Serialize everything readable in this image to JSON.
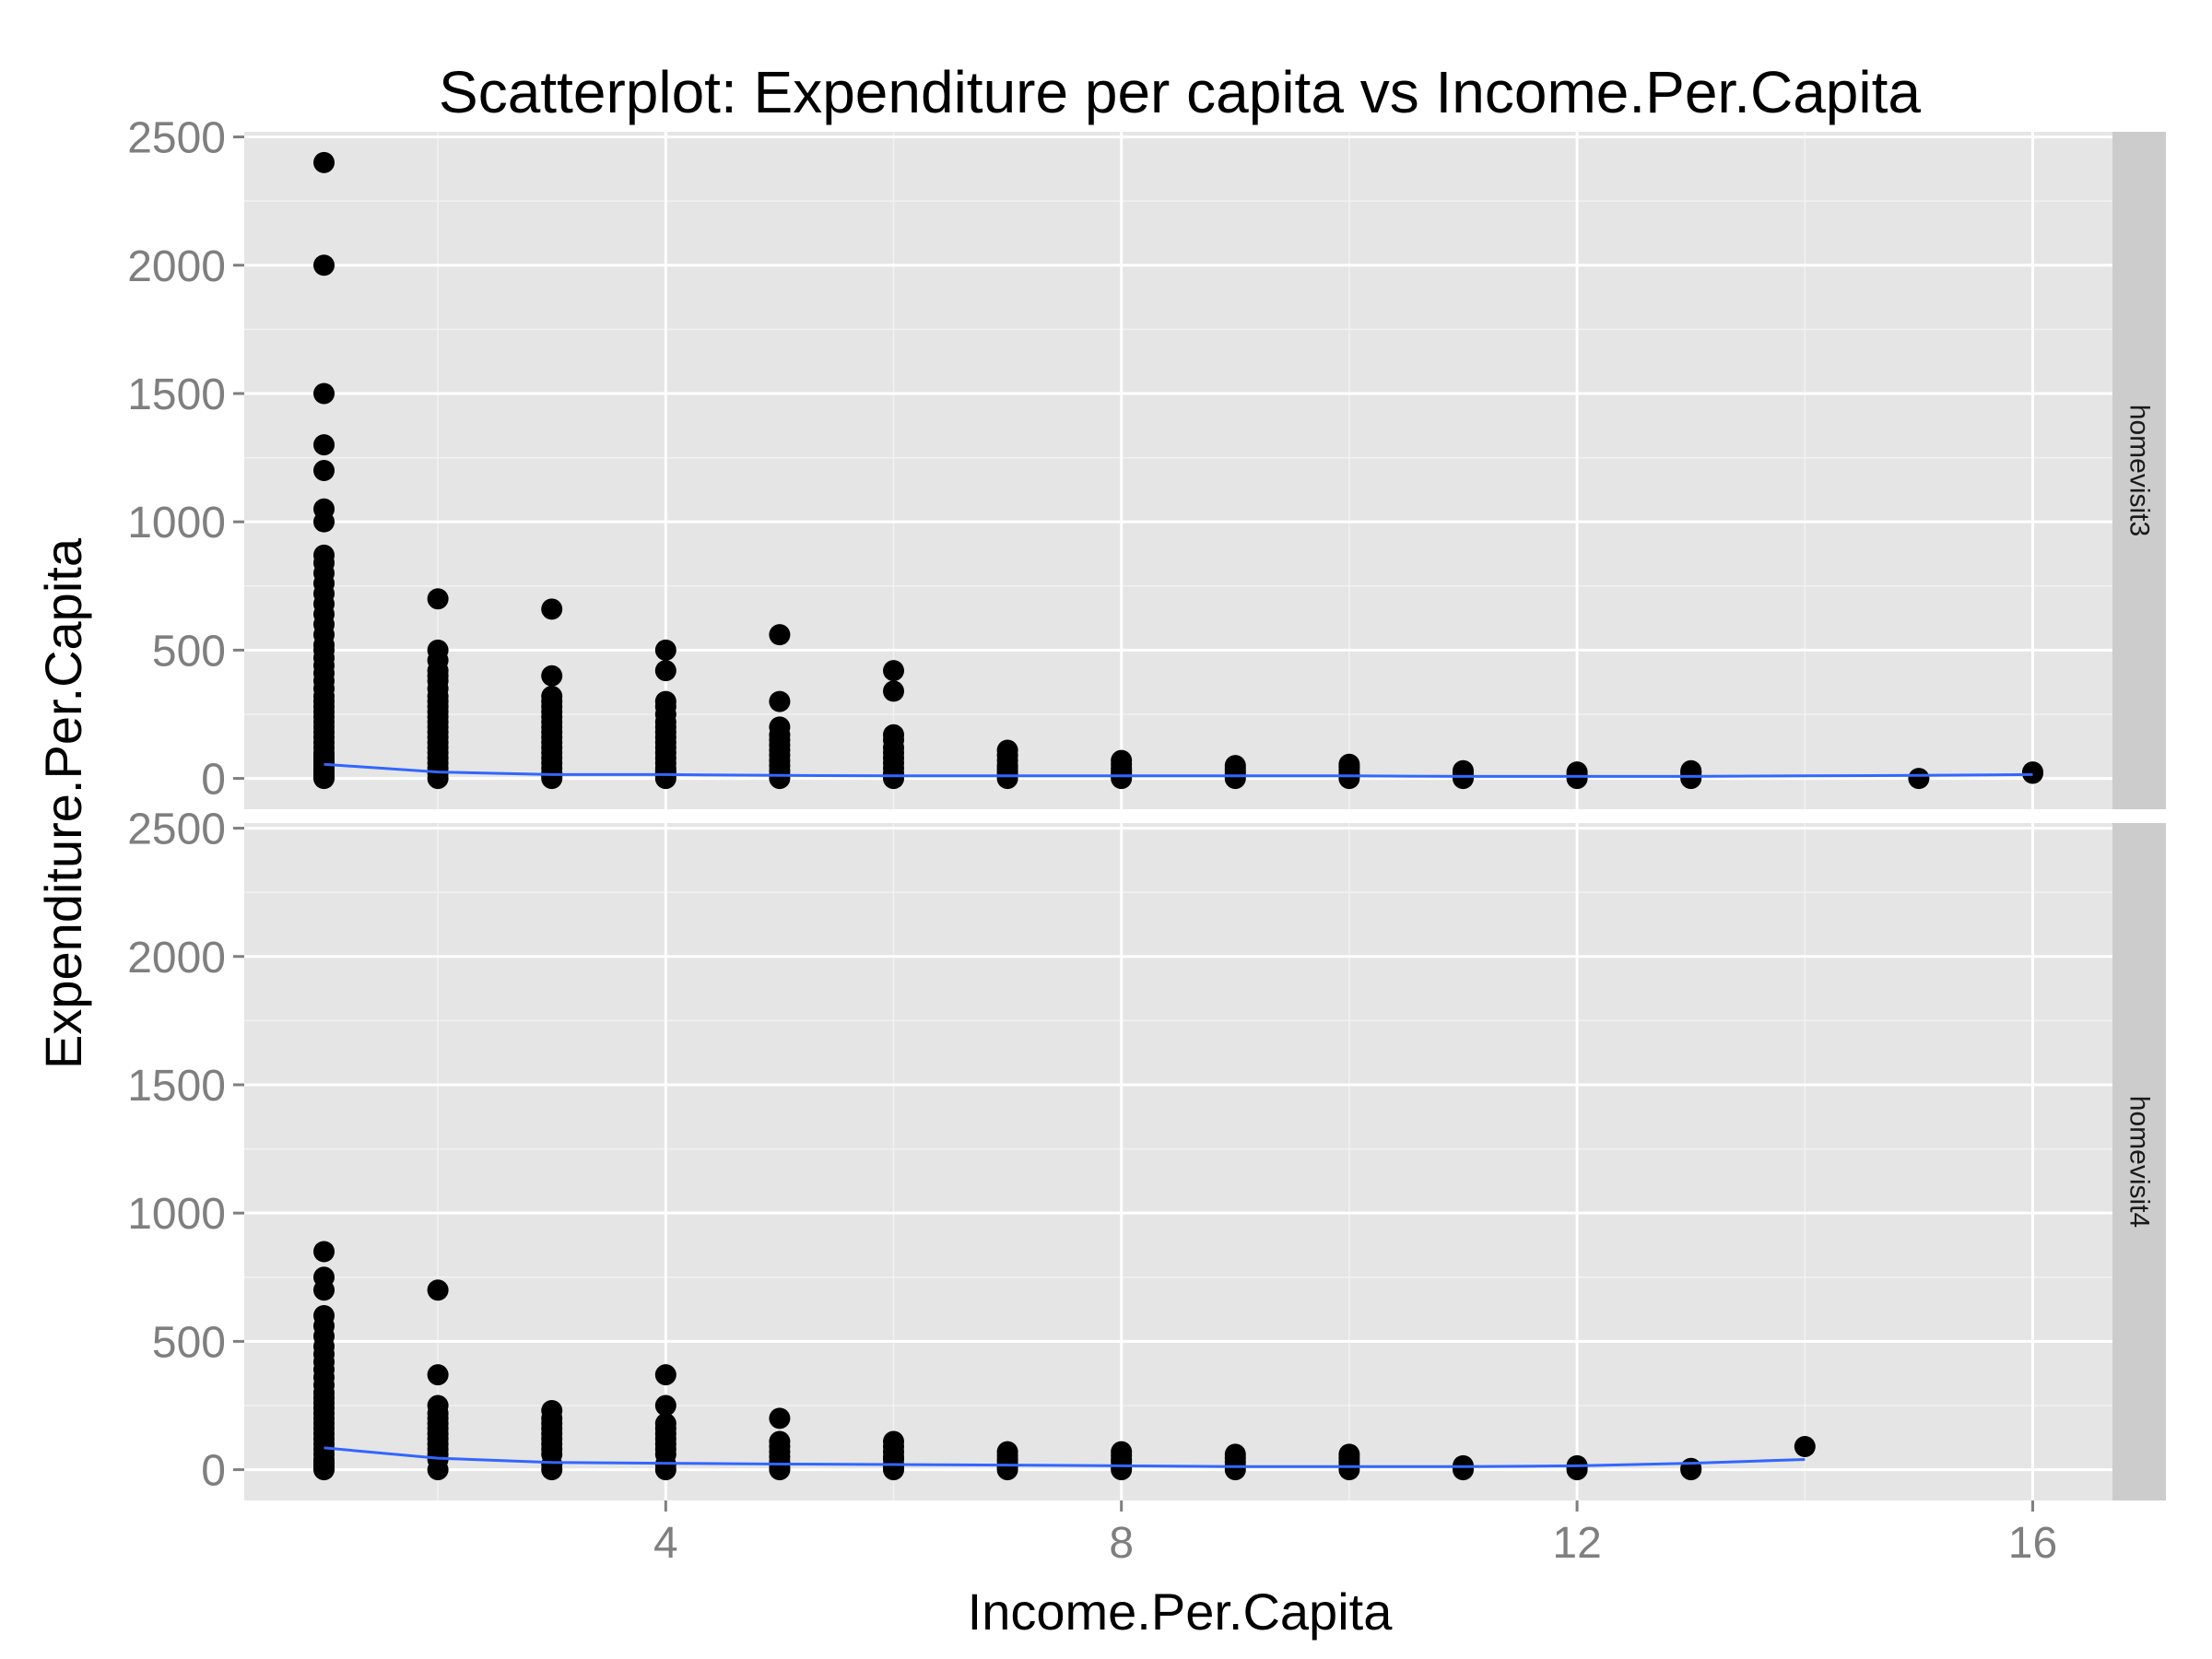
{
  "chart_data": {
    "type": "scatter",
    "title": "Scatterplot: Expenditure per capita vs Income.Per.Capita",
    "xlabel": "Income.Per.Capita",
    "ylabel": "Expenditure.Per.Capita",
    "xlim": [
      0.3,
      16.7
    ],
    "ylim": [
      -120,
      2520
    ],
    "x_ticks": [
      4,
      8,
      12,
      16
    ],
    "y_ticks": [
      0,
      500,
      1000,
      1500,
      2000,
      2500
    ],
    "grid": true,
    "colors": {
      "panel_background": "#e5e5e5",
      "grid": "#ffffff",
      "strip_background": "#cccccc",
      "points": "#000000",
      "smooth_line": "#3366ff"
    },
    "panels": [
      {
        "facet_label": "homevisit3",
        "points": {
          "x": [
            1,
            1,
            1,
            1,
            1,
            1,
            1,
            1,
            1,
            1,
            1,
            1,
            1,
            1,
            1,
            1,
            1,
            1,
            1,
            1,
            1,
            1,
            1,
            1,
            1,
            1,
            1,
            1,
            1,
            1,
            1,
            1,
            1,
            1,
            1,
            1,
            1,
            1,
            1,
            1,
            1,
            1,
            1,
            1,
            1,
            1,
            2,
            2,
            2,
            2,
            2,
            2,
            2,
            2,
            2,
            2,
            2,
            2,
            2,
            2,
            2,
            2,
            2,
            2,
            2,
            2,
            2,
            2,
            2,
            2,
            3,
            3,
            3,
            3,
            3,
            3,
            3,
            3,
            3,
            3,
            3,
            3,
            3,
            3,
            3,
            3,
            3,
            3,
            3,
            3,
            4,
            4,
            4,
            4,
            4,
            4,
            4,
            4,
            4,
            4,
            4,
            4,
            4,
            4,
            4,
            4,
            4,
            4,
            4,
            5,
            5,
            5,
            5,
            5,
            5,
            5,
            5,
            5,
            5,
            5,
            5,
            5,
            6,
            6,
            6,
            6,
            6,
            6,
            6,
            6,
            6,
            6,
            6,
            6,
            7,
            7,
            7,
            7,
            7,
            7,
            7,
            7,
            7,
            8,
            8,
            8,
            8,
            8,
            8,
            8,
            9,
            9,
            9,
            9,
            9,
            9,
            10,
            10,
            10,
            10,
            10,
            10,
            11,
            11,
            11,
            11,
            12,
            12,
            12,
            12,
            13,
            13,
            13,
            13,
            13,
            15,
            16,
            16
          ],
          "y": [
            2400,
            2000,
            1500,
            1300,
            1200,
            1050,
            1000,
            870,
            840,
            800,
            760,
            720,
            680,
            640,
            600,
            560,
            520,
            500,
            470,
            440,
            410,
            380,
            350,
            320,
            300,
            280,
            260,
            240,
            220,
            200,
            180,
            160,
            140,
            120,
            100,
            90,
            80,
            70,
            60,
            50,
            40,
            30,
            20,
            15,
            10,
            0,
            700,
            500,
            460,
            420,
            400,
            380,
            350,
            320,
            300,
            280,
            260,
            240,
            220,
            200,
            180,
            160,
            140,
            120,
            100,
            80,
            60,
            40,
            20,
            0,
            660,
            400,
            320,
            300,
            280,
            260,
            240,
            220,
            200,
            180,
            160,
            140,
            120,
            100,
            80,
            60,
            40,
            20,
            10,
            0,
            500,
            420,
            300,
            280,
            250,
            220,
            200,
            180,
            160,
            140,
            120,
            100,
            80,
            60,
            40,
            30,
            20,
            10,
            0,
            560,
            300,
            200,
            170,
            150,
            130,
            110,
            90,
            70,
            50,
            30,
            15,
            0,
            420,
            340,
            170,
            150,
            120,
            100,
            80,
            60,
            40,
            20,
            10,
            0,
            110,
            90,
            70,
            50,
            40,
            30,
            20,
            10,
            0,
            70,
            55,
            40,
            30,
            20,
            10,
            0,
            50,
            40,
            30,
            20,
            10,
            0,
            55,
            45,
            35,
            20,
            10,
            0,
            30,
            20,
            10,
            0,
            25,
            15,
            10,
            0,
            30,
            25,
            20,
            10,
            0,
            0,
            25,
            20
          ]
        },
        "smooth_line": {
          "x": [
            1,
            2,
            3,
            4,
            5,
            6,
            7,
            8,
            9,
            10,
            11,
            12,
            13,
            14,
            15,
            16
          ],
          "y": [
            55,
            25,
            15,
            15,
            12,
            10,
            10,
            10,
            10,
            10,
            8,
            8,
            8,
            10,
            12,
            15
          ]
        }
      },
      {
        "facet_label": "homevisit4",
        "points": {
          "x": [
            1,
            1,
            1,
            1,
            1,
            1,
            1,
            1,
            1,
            1,
            1,
            1,
            1,
            1,
            1,
            1,
            1,
            1,
            1,
            1,
            1,
            1,
            1,
            1,
            1,
            1,
            1,
            1,
            1,
            1,
            2,
            2,
            2,
            2,
            2,
            2,
            2,
            2,
            2,
            2,
            2,
            2,
            2,
            2,
            3,
            3,
            3,
            3,
            3,
            3,
            3,
            3,
            3,
            3,
            3,
            4,
            4,
            4,
            4,
            4,
            4,
            4,
            4,
            4,
            4,
            4,
            5,
            5,
            5,
            5,
            5,
            5,
            5,
            5,
            6,
            6,
            6,
            6,
            6,
            6,
            6,
            6,
            7,
            7,
            7,
            7,
            7,
            7,
            8,
            8,
            8,
            8,
            8,
            8,
            9,
            9,
            9,
            9,
            9,
            10,
            10,
            10,
            10,
            10,
            11,
            11,
            11,
            12,
            12,
            12,
            13,
            13,
            14
          ],
          "y": [
            850,
            750,
            700,
            600,
            560,
            520,
            480,
            450,
            420,
            390,
            360,
            330,
            300,
            280,
            260,
            240,
            220,
            200,
            180,
            160,
            140,
            120,
            100,
            80,
            60,
            40,
            30,
            20,
            10,
            0,
            700,
            370,
            250,
            220,
            200,
            180,
            160,
            140,
            120,
            100,
            80,
            60,
            40,
            0,
            230,
            200,
            180,
            160,
            140,
            120,
            100,
            80,
            60,
            20,
            0,
            370,
            250,
            180,
            160,
            140,
            120,
            100,
            80,
            60,
            20,
            0,
            200,
            110,
            90,
            70,
            50,
            30,
            10,
            0,
            110,
            90,
            70,
            50,
            40,
            20,
            10,
            0,
            70,
            55,
            40,
            30,
            10,
            0,
            70,
            55,
            40,
            30,
            10,
            0,
            60,
            45,
            30,
            15,
            0,
            60,
            45,
            30,
            15,
            0,
            15,
            10,
            0,
            15,
            10,
            0,
            5,
            0,
            90
          ]
        },
        "smooth_line": {
          "x": [
            1,
            2,
            3,
            4,
            5,
            6,
            7,
            8,
            9,
            10,
            11,
            12,
            13,
            14
          ],
          "y": [
            85,
            45,
            28,
            25,
            22,
            20,
            18,
            15,
            12,
            12,
            12,
            15,
            25,
            40
          ]
        }
      }
    ]
  }
}
